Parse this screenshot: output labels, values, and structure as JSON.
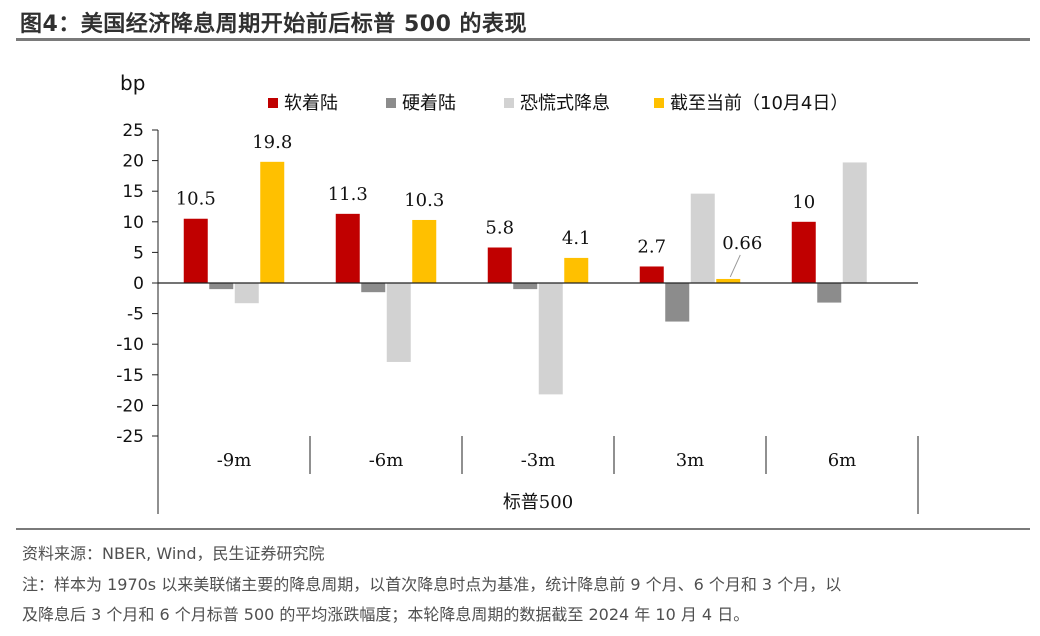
{
  "figure": {
    "title": "图4：美国经济降息周期开始前后标普 500 的表现",
    "source": "资料来源：NBER, Wind，民生证券研究院",
    "note_line1": "注：样本为 1970s 以来美联储主要的降息周期，以首次降息时点为基准，统计降息前 9 个月、6 个月和 3 个月，以",
    "note_line2": "及降息后 3 个月和 6 个月标普 500 的平均涨跌幅度；本轮降息周期的数据截至 2024 年 10 月 4 日。"
  },
  "chart_data": {
    "type": "bar",
    "ylabel": "bp",
    "xlabel": "标普500",
    "ylim": [
      -25,
      25
    ],
    "yticks": [
      25,
      20,
      15,
      10,
      5,
      0,
      -5,
      -10,
      -15,
      -20,
      -25
    ],
    "categories": [
      "-9m",
      "-6m",
      "-3m",
      "3m",
      "6m"
    ],
    "legend_position": "top",
    "series": [
      {
        "name": "软着陆",
        "color": "#C00000",
        "values": [
          10.5,
          11.3,
          5.8,
          2.7,
          10
        ]
      },
      {
        "name": "硬着陆",
        "color": "#8C8C8C",
        "values": [
          -1,
          -1.5,
          -1,
          -6.3,
          -3.2
        ]
      },
      {
        "name": "恐慌式降息",
        "color": "#D2D2D2",
        "values": [
          -3.3,
          -12.9,
          -18.2,
          14.6,
          19.7
        ]
      },
      {
        "name": "截至当前（10月4日）",
        "color": "#FFC000",
        "values": [
          19.8,
          10.3,
          4.1,
          0.66,
          null
        ]
      }
    ],
    "data_labels": [
      {
        "series": 0,
        "index": 0,
        "text": "10.5"
      },
      {
        "series": 3,
        "index": 0,
        "text": "19.8"
      },
      {
        "series": 0,
        "index": 1,
        "text": "11.3"
      },
      {
        "series": 3,
        "index": 1,
        "text": "10.3"
      },
      {
        "series": 0,
        "index": 2,
        "text": "5.8"
      },
      {
        "series": 3,
        "index": 2,
        "text": "4.1"
      },
      {
        "series": 0,
        "index": 3,
        "text": "2.7"
      },
      {
        "series": 3,
        "index": 3,
        "text": "0.66",
        "leader": true
      },
      {
        "series": 0,
        "index": 4,
        "text": "10"
      }
    ]
  }
}
